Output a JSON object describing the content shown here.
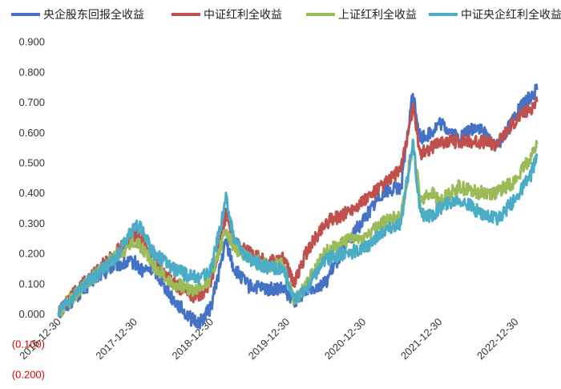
{
  "chart_data": {
    "type": "line",
    "title": "",
    "xlabel": "",
    "ylabel": "",
    "legend_position": "top",
    "grid": false,
    "ylim": [
      -0.2,
      0.9
    ],
    "yticks": [
      0.9,
      0.8,
      0.7,
      0.6,
      0.5,
      0.4,
      0.3,
      0.2,
      0.1,
      0.0,
      -0.1,
      -0.2
    ],
    "ytick_labels": [
      "0.900",
      "0.800",
      "0.700",
      "0.600",
      "0.500",
      "0.400",
      "0.300",
      "0.200",
      "0.100",
      "0.000",
      "(0.100)",
      "(0.200)"
    ],
    "xtick_labels": [
      "2016-12-30",
      "2017-12-30",
      "2018-12-30",
      "2019-12-30",
      "2020-12-30",
      "2021-12-30",
      "2022-12-30"
    ],
    "x_range": [
      2016.95,
      2023.3
    ],
    "xticks": [
      2017.0,
      2018.0,
      2019.0,
      2020.0,
      2021.0,
      2022.0,
      2023.0
    ],
    "series": [
      {
        "name": "央企股东回报全收益",
        "color": "#4472c4",
        "points": [
          [
            2017.0,
            0.0
          ],
          [
            2017.25,
            0.06
          ],
          [
            2017.5,
            0.12
          ],
          [
            2017.75,
            0.16
          ],
          [
            2018.0,
            0.17
          ],
          [
            2018.1,
            0.14
          ],
          [
            2018.25,
            0.15
          ],
          [
            2018.5,
            0.05
          ],
          [
            2018.75,
            -0.02
          ],
          [
            2018.85,
            -0.03
          ],
          [
            2019.0,
            0.02
          ],
          [
            2019.2,
            0.24
          ],
          [
            2019.3,
            0.15
          ],
          [
            2019.5,
            0.09
          ],
          [
            2019.75,
            0.08
          ],
          [
            2019.95,
            0.08
          ],
          [
            2020.1,
            0.04
          ],
          [
            2020.25,
            0.08
          ],
          [
            2020.5,
            0.1
          ],
          [
            2020.75,
            0.22
          ],
          [
            2021.0,
            0.31
          ],
          [
            2021.25,
            0.4
          ],
          [
            2021.5,
            0.42
          ],
          [
            2021.65,
            0.73
          ],
          [
            2021.75,
            0.58
          ],
          [
            2021.9,
            0.6
          ],
          [
            2022.0,
            0.63
          ],
          [
            2022.25,
            0.58
          ],
          [
            2022.5,
            0.62
          ],
          [
            2022.75,
            0.55
          ],
          [
            2023.0,
            0.66
          ],
          [
            2023.2,
            0.72
          ],
          [
            2023.28,
            0.74
          ]
        ]
      },
      {
        "name": "中证红利全收益",
        "color": "#c0504d",
        "points": [
          [
            2017.0,
            0.0
          ],
          [
            2017.25,
            0.08
          ],
          [
            2017.5,
            0.14
          ],
          [
            2017.75,
            0.2
          ],
          [
            2018.0,
            0.26
          ],
          [
            2018.1,
            0.25
          ],
          [
            2018.25,
            0.18
          ],
          [
            2018.5,
            0.1
          ],
          [
            2018.75,
            0.06
          ],
          [
            2018.85,
            0.06
          ],
          [
            2019.0,
            0.1
          ],
          [
            2019.2,
            0.33
          ],
          [
            2019.3,
            0.24
          ],
          [
            2019.5,
            0.2
          ],
          [
            2019.75,
            0.17
          ],
          [
            2019.95,
            0.18
          ],
          [
            2020.1,
            0.1
          ],
          [
            2020.25,
            0.2
          ],
          [
            2020.5,
            0.3
          ],
          [
            2020.75,
            0.33
          ],
          [
            2021.0,
            0.37
          ],
          [
            2021.25,
            0.42
          ],
          [
            2021.5,
            0.48
          ],
          [
            2021.65,
            0.68
          ],
          [
            2021.75,
            0.53
          ],
          [
            2021.9,
            0.55
          ],
          [
            2022.0,
            0.57
          ],
          [
            2022.25,
            0.57
          ],
          [
            2022.5,
            0.57
          ],
          [
            2022.75,
            0.56
          ],
          [
            2023.0,
            0.64
          ],
          [
            2023.2,
            0.68
          ],
          [
            2023.28,
            0.7
          ]
        ]
      },
      {
        "name": "上证红利全收益",
        "color": "#9bbb59",
        "points": [
          [
            2017.0,
            0.0
          ],
          [
            2017.25,
            0.07
          ],
          [
            2017.5,
            0.13
          ],
          [
            2017.75,
            0.19
          ],
          [
            2018.0,
            0.24
          ],
          [
            2018.1,
            0.22
          ],
          [
            2018.25,
            0.16
          ],
          [
            2018.5,
            0.1
          ],
          [
            2018.75,
            0.08
          ],
          [
            2018.85,
            0.08
          ],
          [
            2019.0,
            0.12
          ],
          [
            2019.2,
            0.28
          ],
          [
            2019.3,
            0.22
          ],
          [
            2019.5,
            0.18
          ],
          [
            2019.75,
            0.16
          ],
          [
            2019.95,
            0.16
          ],
          [
            2020.1,
            0.04
          ],
          [
            2020.25,
            0.1
          ],
          [
            2020.5,
            0.2
          ],
          [
            2020.75,
            0.24
          ],
          [
            2021.0,
            0.25
          ],
          [
            2021.25,
            0.3
          ],
          [
            2021.5,
            0.33
          ],
          [
            2021.65,
            0.56
          ],
          [
            2021.75,
            0.38
          ],
          [
            2021.9,
            0.4
          ],
          [
            2022.0,
            0.37
          ],
          [
            2022.25,
            0.42
          ],
          [
            2022.5,
            0.4
          ],
          [
            2022.75,
            0.4
          ],
          [
            2023.0,
            0.44
          ],
          [
            2023.2,
            0.52
          ],
          [
            2023.28,
            0.56
          ]
        ]
      },
      {
        "name": "中证央企红利全收益",
        "color": "#4bacc6",
        "points": [
          [
            2017.0,
            0.0
          ],
          [
            2017.25,
            0.07
          ],
          [
            2017.5,
            0.13
          ],
          [
            2017.75,
            0.18
          ],
          [
            2018.0,
            0.29
          ],
          [
            2018.1,
            0.28
          ],
          [
            2018.25,
            0.2
          ],
          [
            2018.5,
            0.15
          ],
          [
            2018.75,
            0.12
          ],
          [
            2018.85,
            0.12
          ],
          [
            2019.0,
            0.14
          ],
          [
            2019.2,
            0.38
          ],
          [
            2019.3,
            0.25
          ],
          [
            2019.5,
            0.18
          ],
          [
            2019.75,
            0.15
          ],
          [
            2019.95,
            0.15
          ],
          [
            2020.1,
            0.04
          ],
          [
            2020.25,
            0.08
          ],
          [
            2020.5,
            0.18
          ],
          [
            2020.75,
            0.2
          ],
          [
            2021.0,
            0.21
          ],
          [
            2021.25,
            0.27
          ],
          [
            2021.5,
            0.3
          ],
          [
            2021.65,
            0.57
          ],
          [
            2021.75,
            0.33
          ],
          [
            2021.9,
            0.32
          ],
          [
            2022.0,
            0.35
          ],
          [
            2022.25,
            0.38
          ],
          [
            2022.5,
            0.34
          ],
          [
            2022.75,
            0.31
          ],
          [
            2023.0,
            0.38
          ],
          [
            2023.2,
            0.46
          ],
          [
            2023.28,
            0.52
          ]
        ]
      }
    ]
  }
}
